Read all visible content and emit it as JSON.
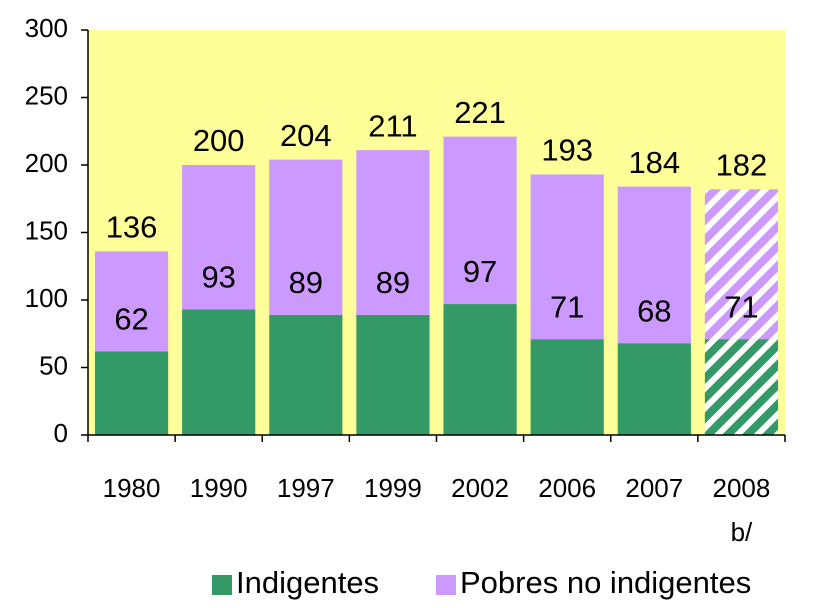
{
  "chart_data": {
    "type": "stacked_bar",
    "categories": [
      "1980",
      "1990",
      "1997",
      "1999",
      "2002",
      "2006",
      "2007",
      "2008 b/"
    ],
    "series": [
      {
        "name": "Indigentes",
        "color": "#339966",
        "values": [
          62,
          93,
          89,
          89,
          97,
          71,
          68,
          71
        ]
      },
      {
        "name": "Pobres no indigentes",
        "color": "#cc99ff",
        "values": [
          74,
          107,
          115,
          122,
          124,
          122,
          116,
          111
        ]
      }
    ],
    "totals": [
      136,
      200,
      204,
      211,
      221,
      193,
      184,
      182
    ],
    "hatched": [
      false,
      false,
      false,
      false,
      false,
      false,
      false,
      true
    ],
    "ylim": [
      0,
      300
    ],
    "yticks": [
      0,
      50,
      100,
      150,
      200,
      250,
      300
    ],
    "background": "#ffff99",
    "legend": "bottom"
  }
}
